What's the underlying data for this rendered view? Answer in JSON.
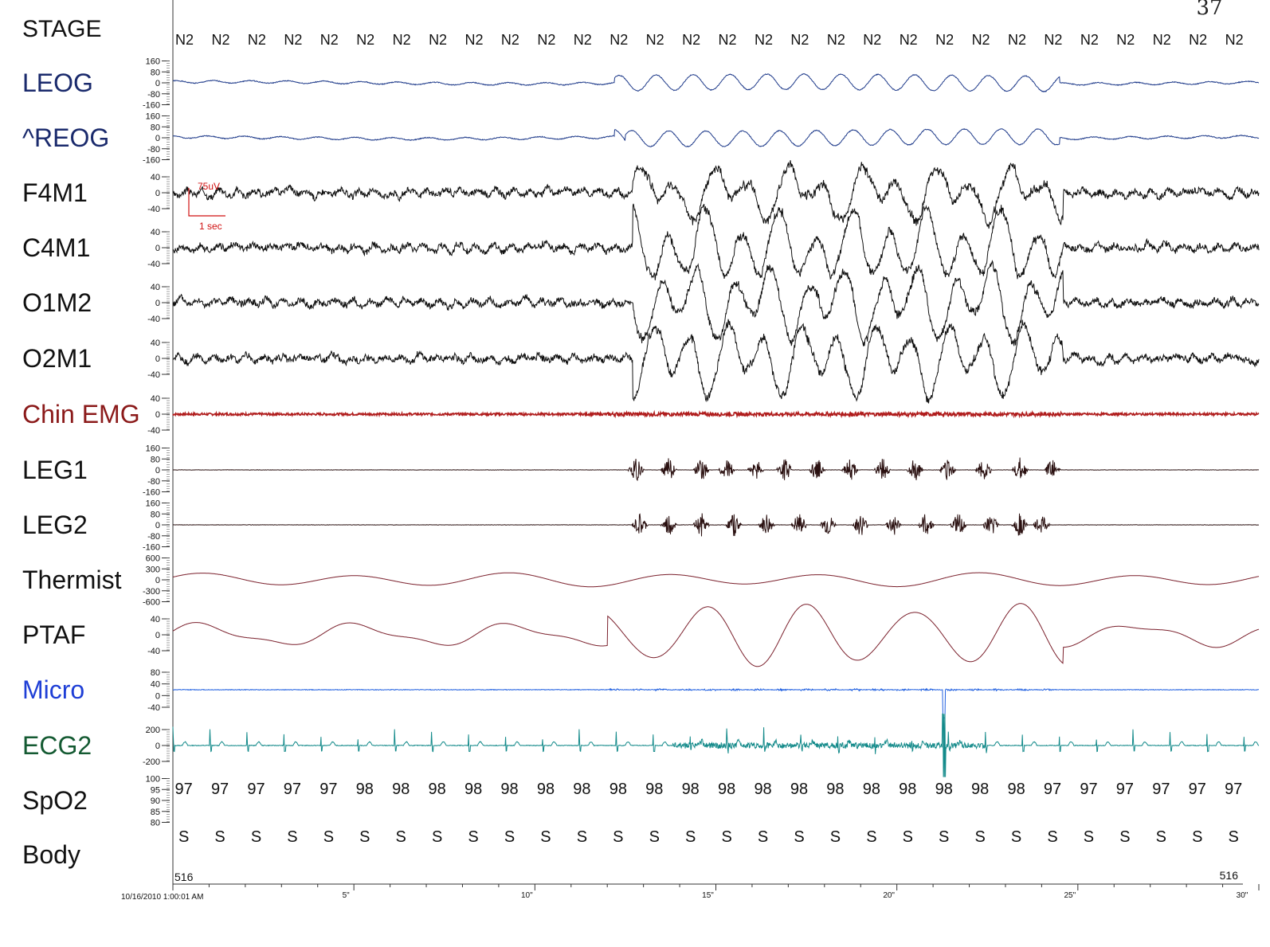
{
  "page_number": "37",
  "stage_row": {
    "label": "STAGE",
    "values": [
      "N2",
      "N2",
      "N2",
      "N2",
      "N2",
      "N2",
      "N2",
      "N2",
      "N2",
      "N2",
      "N2",
      "N2",
      "N2",
      "N2",
      "N2",
      "N2",
      "N2",
      "N2",
      "N2",
      "N2",
      "N2",
      "N2",
      "N2",
      "N2",
      "N2",
      "N2",
      "N2",
      "N2",
      "N2",
      "N2"
    ]
  },
  "channels": [
    {
      "label": "LEOG",
      "color": "#1a2a6c",
      "trace_color": "#1e3a8a",
      "ticks": [
        "160",
        "80",
        "0",
        "-80",
        "-160"
      ],
      "kind": "eog",
      "seed": 1
    },
    {
      "label": "^REOG",
      "color": "#1a2a6c",
      "trace_color": "#1e3a8a",
      "ticks": [
        "160",
        "80",
        "0",
        "-80",
        "-160"
      ],
      "kind": "eog",
      "seed": 2
    },
    {
      "label": "F4M1",
      "color": "#111111",
      "trace_color": "#111111",
      "ticks": [
        "40",
        "0",
        "-40"
      ],
      "kind": "eeg",
      "seed": 3
    },
    {
      "label": "C4M1",
      "color": "#111111",
      "trace_color": "#111111",
      "ticks": [
        "40",
        "0",
        "-40"
      ],
      "kind": "eeg",
      "seed": 4
    },
    {
      "label": "O1M2",
      "color": "#111111",
      "trace_color": "#111111",
      "ticks": [
        "40",
        "0",
        "-40"
      ],
      "kind": "eeg",
      "seed": 5
    },
    {
      "label": "O2M1",
      "color": "#111111",
      "trace_color": "#111111",
      "ticks": [
        "40",
        "0",
        "-40"
      ],
      "kind": "eeg",
      "seed": 6
    },
    {
      "label": "Chin EMG",
      "color": "#8b1a1a",
      "trace_color": "#b01c1c",
      "ticks": [
        "40",
        "0",
        "-40"
      ],
      "kind": "emg",
      "seed": 7
    },
    {
      "label": "LEG1",
      "color": "#111111",
      "trace_color": "#2a1010",
      "ticks": [
        "160",
        "80",
        "0",
        "-80",
        "-160"
      ],
      "kind": "leg",
      "seed": 8,
      "bursts": [
        12.8,
        13.7,
        14.6,
        15.3,
        16.1,
        16.9,
        17.8,
        18.7,
        19.6,
        20.5,
        21.4,
        22.4,
        23.4,
        24.3
      ]
    },
    {
      "label": "LEG2",
      "color": "#111111",
      "trace_color": "#2a1010",
      "ticks": [
        "160",
        "80",
        "0",
        "-80",
        "-160"
      ],
      "kind": "leg",
      "seed": 9,
      "bursts": [
        12.9,
        13.7,
        14.6,
        15.5,
        16.4,
        17.3,
        18.1,
        19.0,
        19.9,
        20.8,
        21.7,
        22.6,
        23.4,
        24.0
      ]
    },
    {
      "label": "Thermist",
      "color": "#111111",
      "trace_color": "#7a1f2b",
      "ticks": [
        "600",
        "300",
        "0",
        "-300",
        "-600"
      ],
      "kind": "resp_slow",
      "seed": 10
    },
    {
      "label": "PTAF",
      "color": "#111111",
      "trace_color": "#7a1f2b",
      "ticks": [
        "40",
        "0",
        "-40"
      ],
      "kind": "resp",
      "seed": 11
    },
    {
      "label": "Micro",
      "color": "#1f3fd6",
      "trace_color": "#1f5fe0",
      "ticks": [
        "80",
        "40",
        "0",
        "-40"
      ],
      "kind": "micro",
      "seed": 12
    },
    {
      "label": "ECG2",
      "color": "#145a32",
      "trace_color": "#138a8a",
      "ticks": [
        "200",
        "0",
        "-200"
      ],
      "kind": "ecg",
      "seed": 13
    },
    {
      "label": "SpO2",
      "color": "#111111",
      "trace_color": "#111111",
      "ticks": [
        "100",
        "95",
        "90",
        "85",
        "80"
      ],
      "kind": "values",
      "seed": 14,
      "values": [
        "97",
        "97",
        "97",
        "97",
        "97",
        "98",
        "98",
        "98",
        "98",
        "98",
        "98",
        "98",
        "98",
        "98",
        "98",
        "98",
        "98",
        "98",
        "98",
        "98",
        "98",
        "98",
        "98",
        "98",
        "97",
        "97",
        "97",
        "97",
        "97",
        "97"
      ]
    },
    {
      "label": "Body",
      "color": "#111111",
      "trace_color": "#111111",
      "ticks": [],
      "kind": "values",
      "seed": 15,
      "values": [
        "S",
        "S",
        "S",
        "S",
        "S",
        "S",
        "S",
        "S",
        "S",
        "S",
        "S",
        "S",
        "S",
        "S",
        "S",
        "S",
        "S",
        "S",
        "S",
        "S",
        "S",
        "S",
        "S",
        "S",
        "S",
        "S",
        "S",
        "S",
        "S",
        "S"
      ]
    }
  ],
  "scale_marker": {
    "amplitude": "75uV",
    "time": "1 sec",
    "color": "#d01010"
  },
  "epoch": {
    "left": "516",
    "right": "516"
  },
  "time_axis": {
    "start_label": "10/16/2010 1:00:01 AM",
    "ticks": [
      {
        "t": 5,
        "label": "5\""
      },
      {
        "t": 10,
        "label": "10\""
      },
      {
        "t": 15,
        "label": "15\""
      },
      {
        "t": 20,
        "label": "20\""
      },
      {
        "t": 25,
        "label": "25\""
      },
      {
        "t": 30,
        "label": "30\""
      }
    ],
    "duration_sec": 30
  },
  "chart_data": {
    "type": "line",
    "title": "",
    "x_unit": "seconds",
    "xlim": [
      0,
      30
    ],
    "series": [
      {
        "name": "LEOG"
      },
      {
        "name": "^REOG"
      },
      {
        "name": "F4M1"
      },
      {
        "name": "C4M1"
      },
      {
        "name": "O1M2"
      },
      {
        "name": "O2M1"
      },
      {
        "name": "Chin EMG"
      },
      {
        "name": "LEG1"
      },
      {
        "name": "LEG2"
      },
      {
        "name": "Thermist"
      },
      {
        "name": "PTAF"
      },
      {
        "name": "Micro"
      },
      {
        "name": "ECG2"
      },
      {
        "name": "SpO2"
      },
      {
        "name": "Body"
      }
    ],
    "stage": "N2"
  }
}
